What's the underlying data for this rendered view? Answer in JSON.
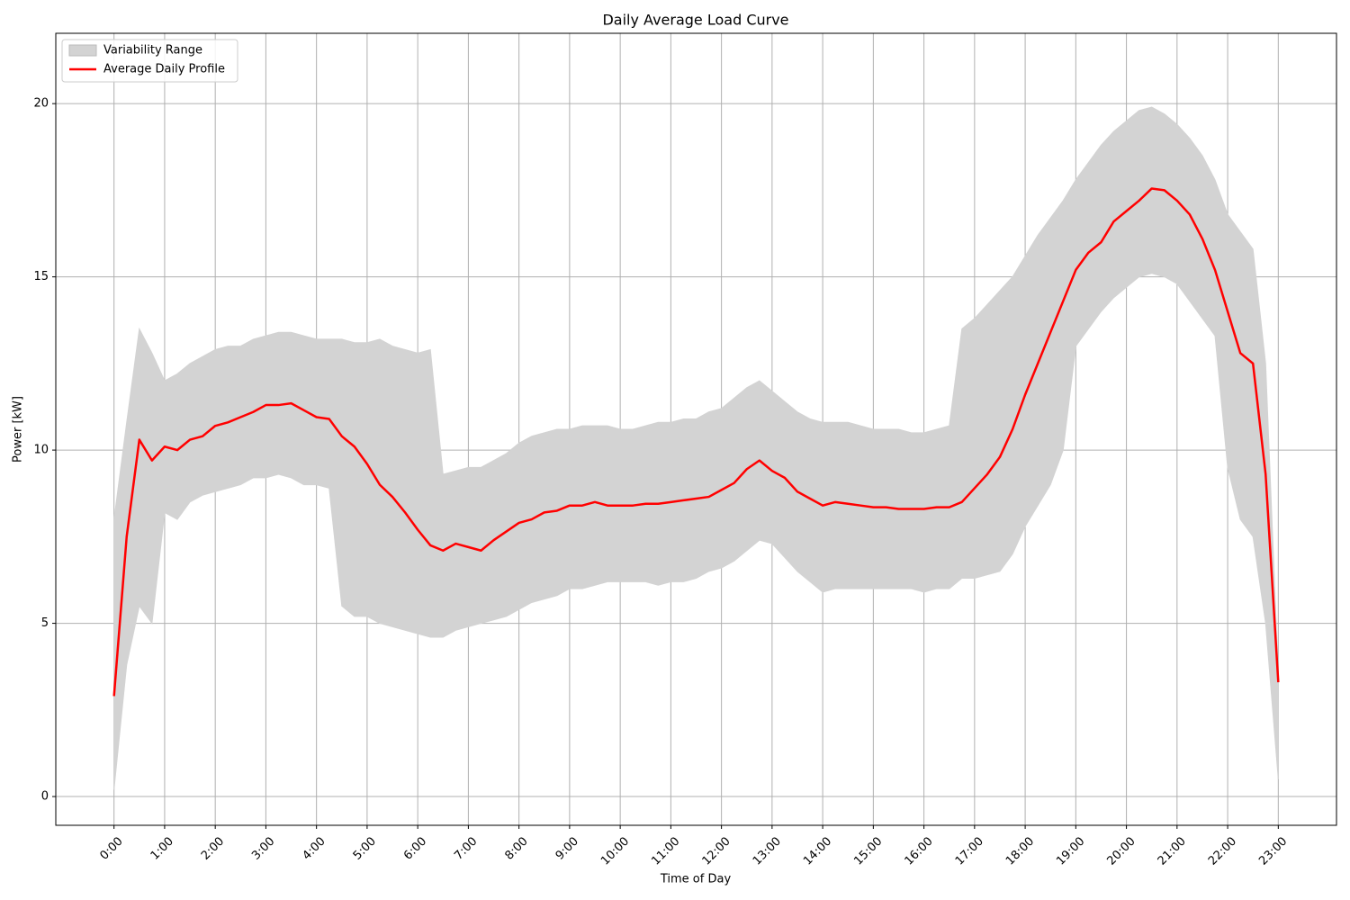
{
  "chart_data": {
    "type": "line",
    "title": "Daily Average Load Curve",
    "x_label": "Time of Day",
    "y_label": "Power [kW]",
    "x": [
      0,
      0.25,
      0.5,
      0.75,
      1,
      1.25,
      1.5,
      1.75,
      2,
      2.25,
      2.5,
      2.75,
      3,
      3.25,
      3.5,
      3.75,
      4,
      4.25,
      4.5,
      4.75,
      5,
      5.25,
      5.5,
      5.75,
      6,
      6.25,
      6.5,
      6.75,
      7,
      7.25,
      7.5,
      7.75,
      8,
      8.25,
      8.5,
      8.75,
      9,
      9.25,
      9.5,
      9.75,
      10,
      10.25,
      10.5,
      10.75,
      11,
      11.25,
      11.5,
      11.75,
      12,
      12.25,
      12.5,
      12.75,
      13,
      13.25,
      13.5,
      13.75,
      14,
      14.25,
      14.5,
      14.75,
      15,
      15.25,
      15.5,
      15.75,
      16,
      16.25,
      16.5,
      16.75,
      17,
      17.25,
      17.5,
      17.75,
      18,
      18.25,
      18.5,
      18.75,
      19,
      19.25,
      19.5,
      19.75,
      20,
      20.25,
      20.5,
      20.75,
      21,
      21.25,
      21.5,
      21.75,
      22,
      22.25,
      22.5,
      22.75,
      23
    ],
    "series": [
      {
        "name": "Variability Range",
        "color": "#d3d3d3",
        "kind": "band",
        "lower": [
          0.2,
          3.8,
          5.5,
          5.0,
          8.2,
          8.0,
          8.5,
          8.7,
          8.8,
          8.9,
          9.0,
          9.2,
          9.2,
          9.3,
          9.2,
          9.0,
          9.0,
          8.9,
          5.5,
          5.2,
          5.2,
          5.0,
          4.9,
          4.8,
          4.7,
          4.6,
          4.6,
          4.8,
          4.9,
          5.0,
          5.1,
          5.2,
          5.4,
          5.6,
          5.7,
          5.8,
          6.0,
          6.0,
          6.1,
          6.2,
          6.2,
          6.2,
          6.2,
          6.1,
          6.2,
          6.2,
          6.3,
          6.5,
          6.6,
          6.8,
          7.1,
          7.4,
          7.3,
          6.9,
          6.5,
          6.2,
          5.9,
          6.0,
          6.0,
          6.0,
          6.0,
          6.0,
          6.0,
          6.0,
          5.9,
          6.0,
          6.0,
          6.3,
          6.3,
          6.4,
          6.5,
          7.0,
          7.8,
          8.4,
          9.0,
          10.0,
          13.0,
          13.5,
          14.0,
          14.4,
          14.7,
          15.0,
          15.1,
          15.0,
          14.8,
          14.3,
          13.8,
          13.3,
          9.5,
          8.0,
          7.5,
          5.0,
          0.5
        ],
        "upper": [
          8.0,
          10.8,
          13.5,
          12.8,
          12.0,
          12.2,
          12.5,
          12.7,
          12.9,
          13.0,
          13.0,
          13.2,
          13.3,
          13.4,
          13.4,
          13.3,
          13.2,
          13.2,
          13.2,
          13.1,
          13.1,
          13.2,
          13.0,
          12.9,
          12.8,
          12.9,
          9.3,
          9.4,
          9.5,
          9.5,
          9.7,
          9.9,
          10.2,
          10.4,
          10.5,
          10.6,
          10.6,
          10.7,
          10.7,
          10.7,
          10.6,
          10.6,
          10.7,
          10.8,
          10.8,
          10.9,
          10.9,
          11.1,
          11.2,
          11.5,
          11.8,
          12.0,
          11.7,
          11.4,
          11.1,
          10.9,
          10.8,
          10.8,
          10.8,
          10.7,
          10.6,
          10.6,
          10.6,
          10.5,
          10.5,
          10.6,
          10.7,
          13.5,
          13.8,
          14.2,
          14.6,
          15.0,
          15.6,
          16.2,
          16.7,
          17.2,
          17.8,
          18.3,
          18.8,
          19.2,
          19.5,
          19.8,
          19.9,
          19.7,
          19.4,
          19.0,
          18.5,
          17.8,
          16.8,
          16.3,
          15.8,
          12.5,
          3.5
        ]
      },
      {
        "name": "Average Daily Profile",
        "color": "#ff0000",
        "kind": "line",
        "values": [
          2.9,
          7.5,
          10.3,
          9.7,
          10.1,
          10.0,
          10.3,
          10.4,
          10.7,
          10.8,
          10.95,
          11.1,
          11.3,
          11.3,
          11.35,
          11.15,
          10.95,
          10.9,
          10.4,
          10.1,
          9.6,
          9.0,
          8.65,
          8.2,
          7.7,
          7.25,
          7.1,
          7.3,
          7.2,
          7.1,
          7.4,
          7.65,
          7.9,
          8.0,
          8.2,
          8.25,
          8.4,
          8.4,
          8.5,
          8.4,
          8.4,
          8.4,
          8.45,
          8.45,
          8.5,
          8.55,
          8.6,
          8.65,
          8.85,
          9.05,
          9.45,
          9.7,
          9.4,
          9.2,
          8.8,
          8.6,
          8.4,
          8.5,
          8.45,
          8.4,
          8.35,
          8.35,
          8.3,
          8.3,
          8.3,
          8.35,
          8.35,
          8.5,
          8.9,
          9.3,
          9.8,
          10.6,
          11.6,
          12.5,
          13.4,
          14.3,
          15.2,
          15.7,
          16.0,
          16.6,
          16.9,
          17.2,
          17.55,
          17.5,
          17.2,
          16.8,
          16.1,
          15.2,
          14.0,
          12.8,
          12.5,
          9.3,
          3.3
        ]
      }
    ],
    "xlim": [
      -1.15,
      24.15
    ],
    "ylim": [
      -0.83,
      22.03
    ],
    "xticks": [
      {
        "value": 0,
        "label": "0:00"
      },
      {
        "value": 1,
        "label": "1:00"
      },
      {
        "value": 2,
        "label": "2:00"
      },
      {
        "value": 3,
        "label": "3:00"
      },
      {
        "value": 4,
        "label": "4:00"
      },
      {
        "value": 5,
        "label": "5:00"
      },
      {
        "value": 6,
        "label": "6:00"
      },
      {
        "value": 7,
        "label": "7:00"
      },
      {
        "value": 8,
        "label": "8:00"
      },
      {
        "value": 9,
        "label": "9:00"
      },
      {
        "value": 10,
        "label": "10:00"
      },
      {
        "value": 11,
        "label": "11:00"
      },
      {
        "value": 12,
        "label": "12:00"
      },
      {
        "value": 13,
        "label": "13:00"
      },
      {
        "value": 14,
        "label": "14:00"
      },
      {
        "value": 15,
        "label": "15:00"
      },
      {
        "value": 16,
        "label": "16:00"
      },
      {
        "value": 17,
        "label": "17:00"
      },
      {
        "value": 18,
        "label": "18:00"
      },
      {
        "value": 19,
        "label": "19:00"
      },
      {
        "value": 20,
        "label": "20:00"
      },
      {
        "value": 21,
        "label": "21:00"
      },
      {
        "value": 22,
        "label": "22:00"
      },
      {
        "value": 23,
        "label": "23:00"
      }
    ],
    "yticks": [
      0,
      5,
      10,
      15,
      20
    ],
    "grid": true,
    "legend": "upper left"
  }
}
